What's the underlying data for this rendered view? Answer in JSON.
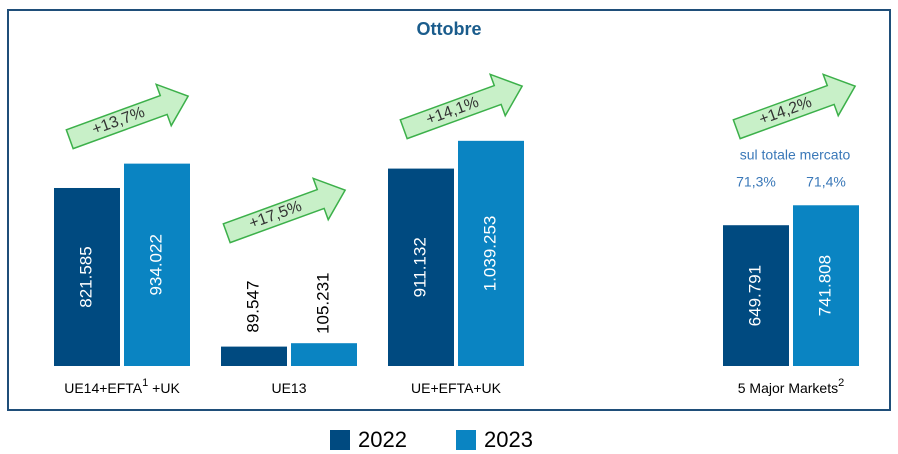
{
  "chart_data": {
    "type": "bar",
    "title": "Ottobre",
    "categories": [
      [
        {
          "text": "UE14+EFTA"
        },
        {
          "sup": "1"
        },
        {
          "text": " +UK"
        }
      ],
      [
        {
          "text": "UE13"
        }
      ],
      [
        {
          "text": "UE+EFTA+UK"
        }
      ],
      [
        {
          "text": "5 Major Markets"
        },
        {
          "sup": "2"
        }
      ]
    ],
    "series": [
      {
        "name": "2022",
        "color": "#004a80",
        "values": [
          821585,
          89547,
          911132,
          649791
        ],
        "value_labels": [
          "821.585",
          "89.547",
          "911.132",
          "649.791"
        ]
      },
      {
        "name": "2023",
        "color": "#0a84c2",
        "values": [
          934022,
          105231,
          1039253,
          741808
        ],
        "value_labels": [
          "934.022",
          "105.231",
          "1.039.253",
          "741.808"
        ]
      }
    ],
    "ylim": [
      0,
      1200000
    ],
    "annotations": [
      "+13,7%",
      "+17,5%",
      "+14,1%",
      "+14,2%"
    ],
    "share_note": {
      "title": "sul totale mercato",
      "labels": [
        "71,3%",
        "71,4%"
      ]
    },
    "legend": "bottom"
  }
}
